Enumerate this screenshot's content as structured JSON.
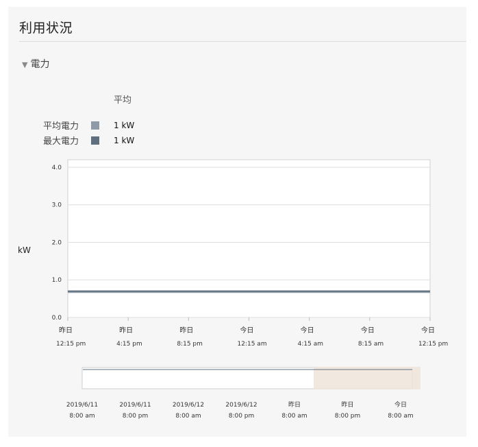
{
  "header": {
    "title": "利用状況"
  },
  "section": {
    "label": "電力",
    "toggle_icon": "triangle-down-icon"
  },
  "legend": {
    "column_header": "平均",
    "items": [
      {
        "label": "平均電力",
        "value": "1 kW",
        "color": "#8e9aa8"
      },
      {
        "label": "最大電力",
        "value": "1 kW",
        "color": "#5f6f7e"
      }
    ]
  },
  "chart_data": {
    "type": "line",
    "ylabel": "kW",
    "ylim": [
      0,
      4.2
    ],
    "yticks": [
      "0.0",
      "1.0",
      "2.0",
      "3.0",
      "4.0"
    ],
    "ytick_values": [
      0,
      1,
      2,
      3,
      4
    ],
    "xticks": [
      {
        "day": "昨日",
        "time": "12:15 pm"
      },
      {
        "day": "昨日",
        "time": "4:15 pm"
      },
      {
        "day": "昨日",
        "time": "8:15 pm"
      },
      {
        "day": "今日",
        "time": "12:15 am"
      },
      {
        "day": "今日",
        "time": "4:15 am"
      },
      {
        "day": "今日",
        "time": "8:15 am"
      },
      {
        "day": "今日",
        "time": "12:15 pm"
      }
    ],
    "series": [
      {
        "name": "平均電力",
        "values": [
          0.68,
          0.68,
          0.68,
          0.68,
          0.68,
          0.68,
          0.68
        ],
        "color": "#8e9aa8"
      },
      {
        "name": "最大電力",
        "values": [
          0.7,
          0.7,
          0.7,
          0.7,
          0.7,
          0.7,
          0.7
        ],
        "color": "#5f6f7e"
      }
    ],
    "grid": true
  },
  "navigator": {
    "ticks": [
      {
        "day": "2019/6/11",
        "time": "8:00 am"
      },
      {
        "day": "2019/6/11",
        "time": "8:00 pm"
      },
      {
        "day": "2019/6/12",
        "time": "8:00 am"
      },
      {
        "day": "2019/6/12",
        "time": "8:00 pm"
      },
      {
        "day": "昨日",
        "time": "8:00 am"
      },
      {
        "day": "昨日",
        "time": "8:00 pm"
      },
      {
        "day": "今日",
        "time": "8:00 am"
      }
    ],
    "selection_color": "#efe4da"
  }
}
